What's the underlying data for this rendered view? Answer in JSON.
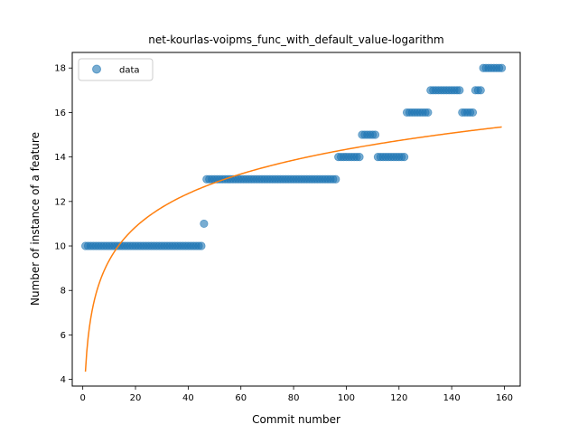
{
  "chart_data": {
    "type": "scatter",
    "title": "net-kourlas-voipms_func_with_default_value-logarithm",
    "xlabel": "Commit number",
    "ylabel": "Number of instance of a feature",
    "xlim": [
      -4,
      166
    ],
    "ylim": [
      3.7,
      18.7
    ],
    "xticks": [
      0,
      20,
      40,
      60,
      80,
      100,
      120,
      140,
      160
    ],
    "yticks": [
      4,
      6,
      8,
      10,
      12,
      14,
      16,
      18
    ],
    "grid": false,
    "legend": {
      "placement": "top-left",
      "entries": [
        "data"
      ]
    },
    "colors": {
      "data": "#1f77b4",
      "fit": "#ff7f0e"
    },
    "series": [
      {
        "name": "data",
        "kind": "scatter",
        "points": [
          {
            "x_from": 1,
            "x_to": 45,
            "y": 10
          },
          {
            "x_from": 46,
            "x_to": 46,
            "y": 11
          },
          {
            "x_from": 47,
            "x_to": 96,
            "y": 13
          },
          {
            "x_from": 97,
            "x_to": 105,
            "y": 14
          },
          {
            "x_from": 106,
            "x_to": 111,
            "y": 15
          },
          {
            "x_from": 112,
            "x_to": 122,
            "y": 14
          },
          {
            "x_from": 123,
            "x_to": 131,
            "y": 16
          },
          {
            "x_from": 132,
            "x_to": 143,
            "y": 17
          },
          {
            "x_from": 144,
            "x_to": 148,
            "y": 16
          },
          {
            "x_from": 149,
            "x_to": 151,
            "y": 17
          },
          {
            "x_from": 152,
            "x_to": 159,
            "y": 18
          }
        ]
      },
      {
        "kind": "line",
        "model": "logarithm",
        "coefficients": {
          "a": 4.35,
          "b": 2.17
        },
        "x_range": [
          1,
          159
        ]
      }
    ]
  }
}
